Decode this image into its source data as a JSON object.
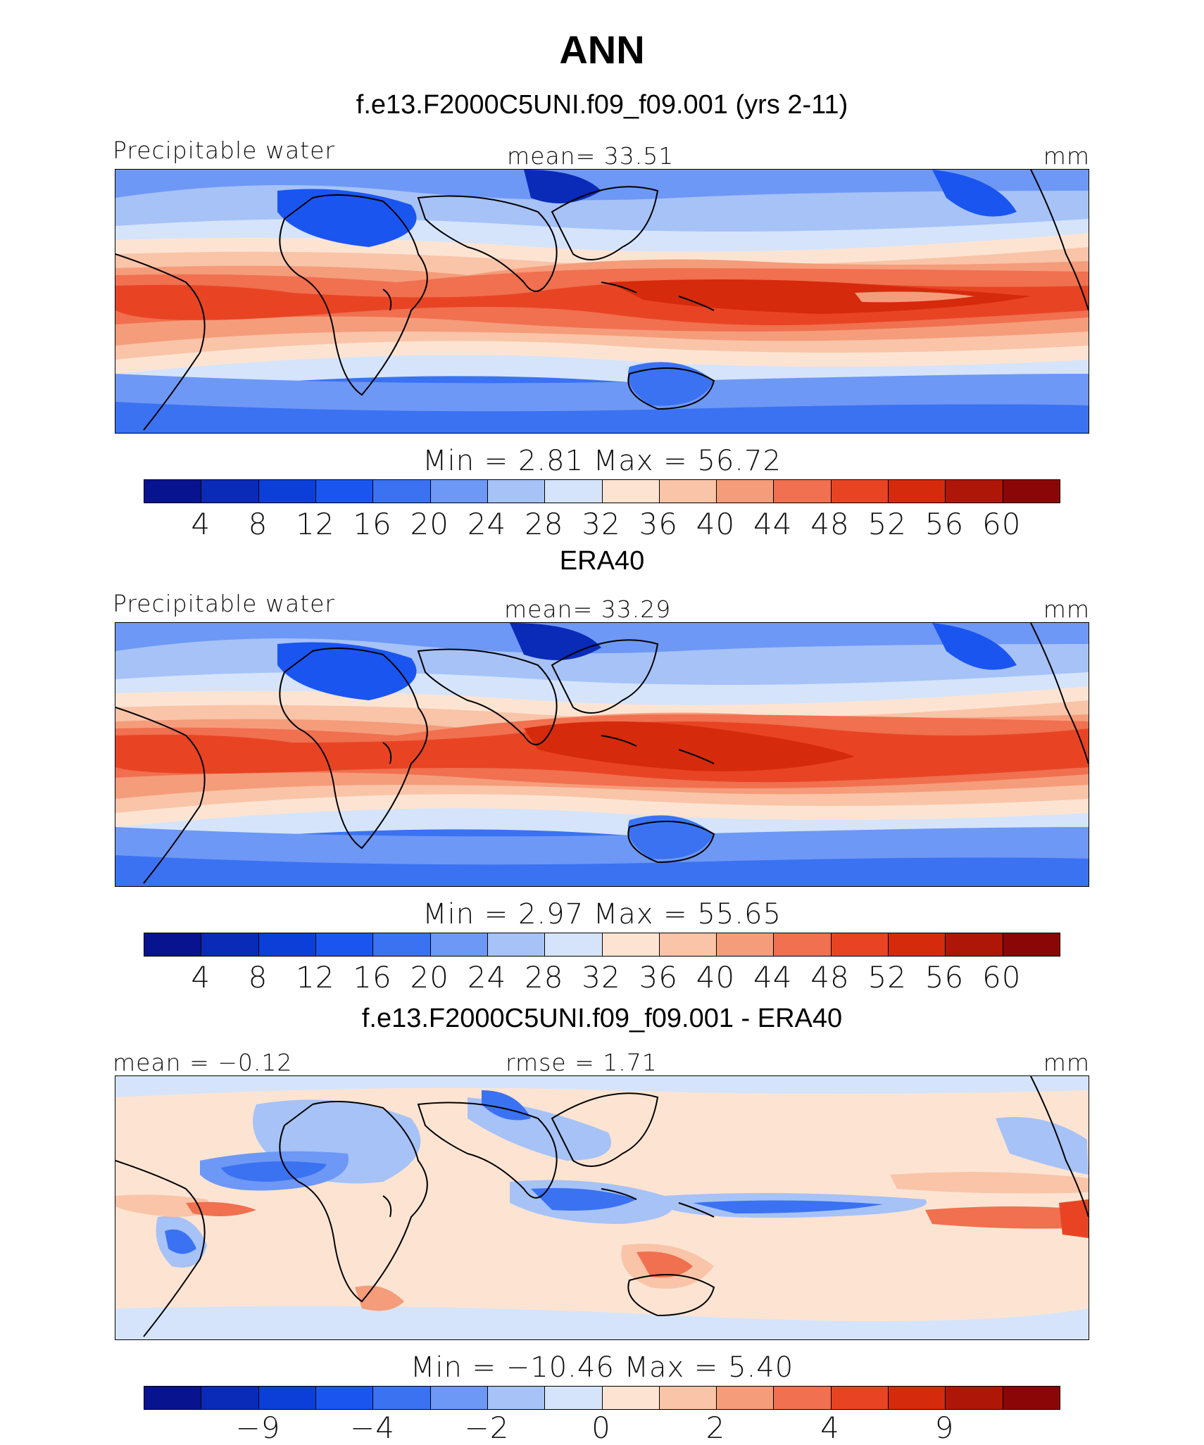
{
  "title": "ANN",
  "panels": [
    {
      "id": "model",
      "heading": "f.e13.F2000C5UNI.f09_f09.001 (yrs 2-11)",
      "left_label": "Precipitable water",
      "center_label": "mean=   33.51",
      "right_label": "mm",
      "min_max": "Min  =     2.81  Max  =    56.72"
    },
    {
      "id": "obs",
      "heading": "ERA40",
      "left_label": "Precipitable water",
      "center_label": "mean=   33.29",
      "right_label": "mm",
      "min_max": "Min  =     2.97  Max  =    55.65"
    },
    {
      "id": "diff",
      "heading": "f.e13.F2000C5UNI.f09_f09.001 - ERA40",
      "left_label": "mean =   −0.12",
      "center_label": "rmse =     1.71",
      "right_label": "mm",
      "min_max": "Min  =  −10.46  Max  =      5.40"
    }
  ],
  "colorbar_abs": {
    "colors": [
      "#08138f",
      "#0a2ab8",
      "#0c3fd8",
      "#1a55f0",
      "#3a72f2",
      "#6e98f5",
      "#a6c2f7",
      "#d5e4fb",
      "#fde4d2",
      "#f9c4a8",
      "#f59c7b",
      "#f0704f",
      "#e84424",
      "#d62a0c",
      "#ae1708",
      "#8b0606"
    ],
    "ticks": [
      "4",
      "8",
      "12",
      "16",
      "20",
      "24",
      "28",
      "32",
      "36",
      "40",
      "44",
      "48",
      "52",
      "56",
      "60"
    ]
  },
  "colorbar_diff": {
    "colors": [
      "#08138f",
      "#0a2ab8",
      "#0c3fd8",
      "#1a55f0",
      "#3a72f2",
      "#6e98f5",
      "#a6c2f7",
      "#d5e4fb",
      "#fde4d2",
      "#f9c4a8",
      "#f59c7b",
      "#f0704f",
      "#e84424",
      "#d62a0c",
      "#ae1708",
      "#8b0606"
    ],
    "ticks": [
      "−9",
      "−4",
      "−2",
      "0",
      "2",
      "4",
      "9"
    ]
  }
}
